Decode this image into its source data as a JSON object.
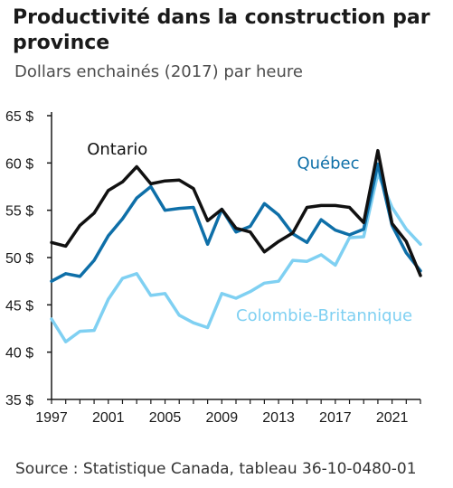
{
  "title": "Productivité dans la construction par province",
  "subtitle": "Dollars enchainés (2017) par heure",
  "source": "Source : Statistique Canada, tableau 36-10-0480-01",
  "chart_data": {
    "type": "line",
    "title": "Productivité dans la construction par province",
    "subtitle": "Dollars enchainés (2017) par heure",
    "xlabel": "",
    "ylabel": "",
    "x": [
      1997,
      1998,
      1999,
      2000,
      2001,
      2002,
      2003,
      2004,
      2005,
      2006,
      2007,
      2008,
      2009,
      2010,
      2011,
      2012,
      2013,
      2014,
      2015,
      2016,
      2017,
      2018,
      2019,
      2020,
      2021,
      2022,
      2023
    ],
    "xticks": [
      "1997",
      "2001",
      "2005",
      "2009",
      "2013",
      "2017",
      "2021"
    ],
    "yticks": [
      "35 $",
      "40 $",
      "45 $",
      "50 $",
      "55 $",
      "60 $",
      "65 $"
    ],
    "ylim": [
      35,
      65
    ],
    "xlim": [
      1997,
      2023
    ],
    "grid": false,
    "series": [
      {
        "name": "Ontario",
        "color": "#111111",
        "values": [
          51.6,
          51.2,
          53.4,
          54.7,
          57.1,
          58.0,
          59.6,
          57.8,
          58.1,
          58.2,
          57.3,
          53.9,
          55.1,
          53.1,
          52.7,
          50.6,
          51.7,
          52.6,
          55.3,
          55.5,
          55.5,
          55.3,
          53.7,
          61.3,
          53.6,
          51.7,
          48.1
        ]
      },
      {
        "name": "Québec",
        "color": "#0e6fa8",
        "values": [
          47.5,
          48.3,
          48.0,
          49.7,
          52.3,
          54.1,
          56.3,
          57.5,
          55.0,
          55.2,
          55.3,
          51.4,
          55.1,
          52.7,
          53.3,
          55.7,
          54.5,
          52.5,
          51.6,
          54.0,
          52.9,
          52.4,
          53.0,
          59.9,
          53.4,
          50.5,
          48.6
        ]
      },
      {
        "name": "Colombie-Britannique",
        "color": "#7fd0f2",
        "values": [
          43.5,
          41.1,
          42.2,
          42.3,
          45.6,
          47.8,
          48.3,
          46.0,
          46.2,
          43.9,
          43.1,
          42.6,
          46.2,
          45.7,
          46.4,
          47.3,
          47.5,
          49.7,
          49.6,
          50.3,
          49.2,
          52.1,
          52.2,
          58.9,
          55.3,
          53.0,
          51.4
        ]
      }
    ]
  }
}
